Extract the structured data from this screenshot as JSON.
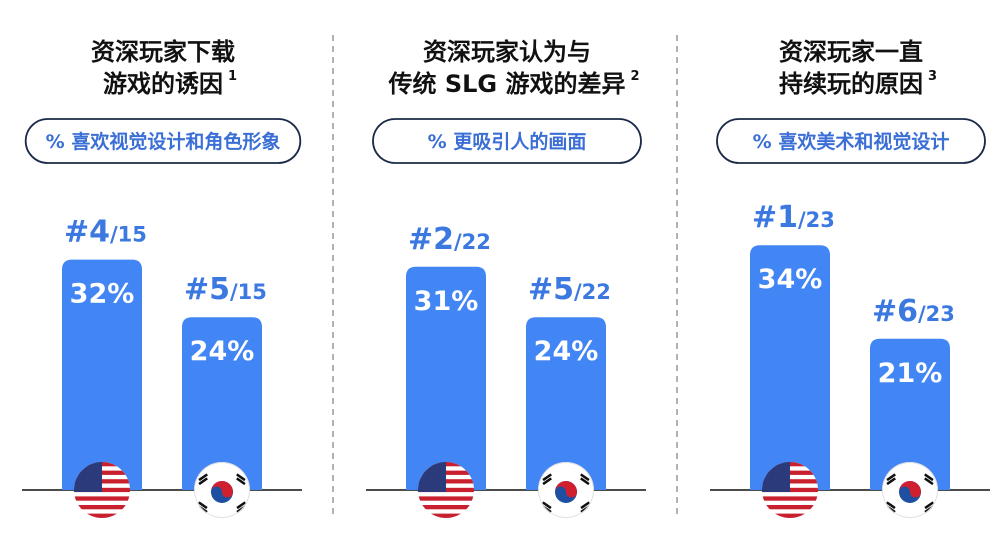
{
  "chart_data": [
    {
      "type": "bar",
      "title": [
        "资深玩家下载",
        "游戏的诱因"
      ],
      "footnote": "1",
      "subtitle": "% 喜欢视觉设计和角色形象",
      "color": "#4285f4",
      "values": [
        32,
        24
      ],
      "value_labels": [
        "32%",
        "24%"
      ],
      "rank_labels": [
        [
          "#4",
          "/15"
        ],
        [
          "#5",
          "/15"
        ]
      ]
    },
    {
      "type": "bar",
      "title": [
        "资深玩家认为与",
        "传统 SLG 游戏的差异"
      ],
      "footnote": "2",
      "subtitle": "% 更吸引人的画面",
      "color": "#4285f4",
      "values": [
        31,
        24
      ],
      "value_labels": [
        "31%",
        "24%"
      ],
      "rank_labels": [
        [
          "#2",
          "/22"
        ],
        [
          "#5",
          "/22"
        ]
      ]
    },
    {
      "type": "bar",
      "title": [
        "资深玩家一直",
        "持续玩的原因"
      ],
      "footnote": "3",
      "subtitle": "% 喜欢美术和视觉设计",
      "color": "#4285f4",
      "values": [
        34,
        21
      ],
      "value_labels": [
        "34%",
        "21%"
      ],
      "rank_labels": [
        [
          "#1",
          "/23"
        ],
        [
          "#6",
          "/23"
        ]
      ]
    }
  ]
}
